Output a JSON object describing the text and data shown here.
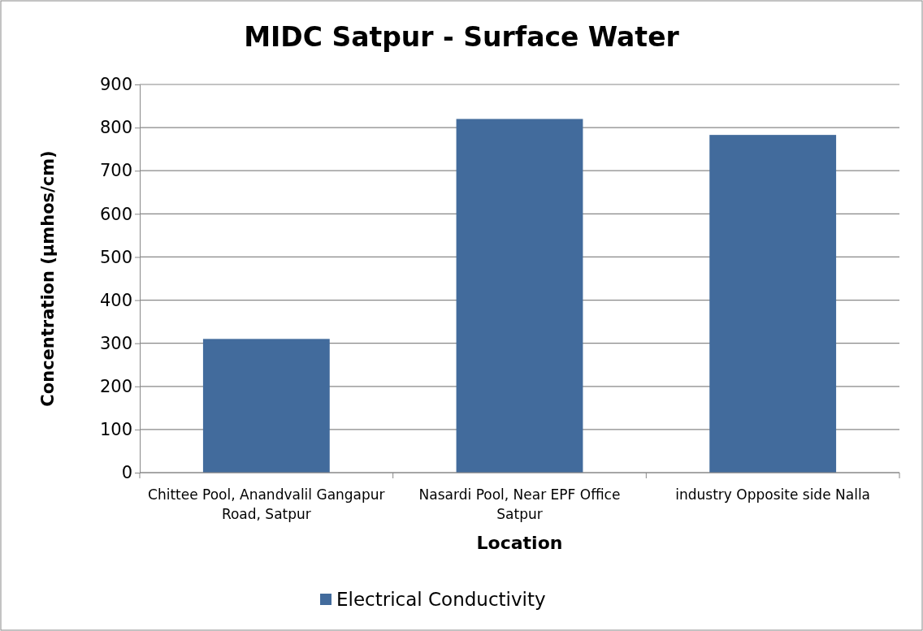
{
  "chart_data": {
    "type": "bar",
    "title": "MIDC Satpur - Surface Water",
    "xlabel": "Location",
    "ylabel": "Concentration (µmhos/cm)",
    "categories": [
      "Chittee Pool, Anandvalil Gangapur Road, Satpur",
      "Nasardi Pool, Near EPF Office Satpur",
      "industry Opposite side Nalla"
    ],
    "series": [
      {
        "name": "Electrical Conductivity",
        "color": "#426b9c",
        "values": [
          310,
          820,
          783
        ]
      }
    ],
    "ylim": [
      0,
      900
    ],
    "yticks": [
      0,
      100,
      200,
      300,
      400,
      500,
      600,
      700,
      800,
      900
    ],
    "grid": "y",
    "legend": "bottom"
  }
}
